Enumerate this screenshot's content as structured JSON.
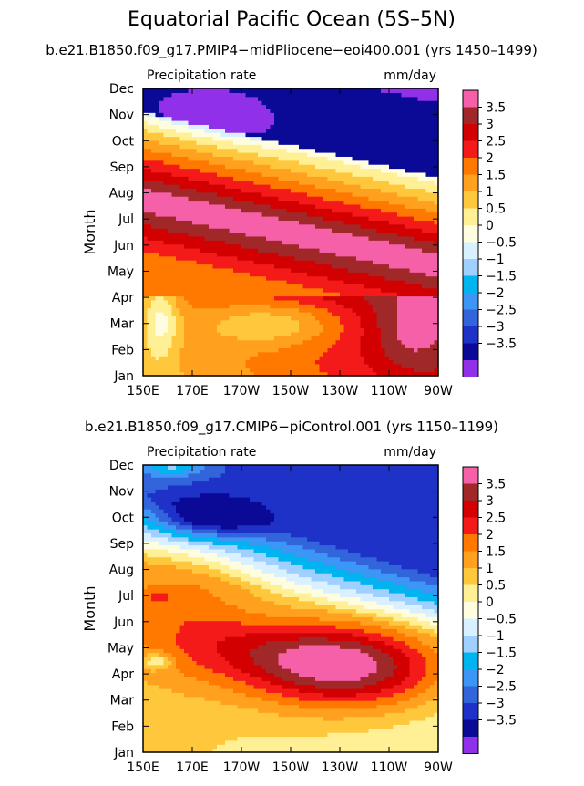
{
  "main_title": "Equatorial Pacific Ocean (5S–5N)",
  "panels": [
    {
      "title": "b.e21.B1850.f09_g17.PMIP4−midPliocene−eoi400.001 (yrs 1450–1499)",
      "left_label": "Precipitation rate",
      "right_label": "mm/day"
    },
    {
      "title": "b.e21.B1850.f09_g17.CMIP6−piControl.001 (yrs 1150–1199)",
      "left_label": "Precipitation rate",
      "right_label": "mm/day"
    }
  ],
  "chart_data": [
    {
      "type": "heatmap",
      "title": "b.e21.B1850.f09_g17.PMIP4−midPliocene−eoi400.001 (yrs 1450–1499)",
      "variable": "Precipitation rate",
      "units": "mm/day",
      "ylabel": "Month",
      "xlabel": "",
      "x_ticks": [
        "150E",
        "170E",
        "170W",
        "150W",
        "130W",
        "110W",
        "90W"
      ],
      "x_range": [
        150,
        270
      ],
      "y_ticks": [
        "Jan",
        "Feb",
        "Mar",
        "Apr",
        "May",
        "Jun",
        "Jul",
        "Aug",
        "Sep",
        "Oct",
        "Nov",
        "Dec"
      ],
      "colorbar_levels": [
        -3.5,
        -3,
        -2.5,
        -2,
        -1.5,
        -1,
        -0.5,
        0,
        0.5,
        1,
        1.5,
        2,
        2.5,
        3,
        3.5
      ],
      "colorbar_labels": [
        "3.5",
        "3",
        "2.5",
        "2",
        "1.5",
        "1",
        "0.5",
        "0",
        "−0.5",
        "−1",
        "−1.5",
        "−2",
        "−2.5",
        "−3",
        "−3.5"
      ]
    },
    {
      "type": "heatmap",
      "title": "b.e21.B1850.f09_g17.CMIP6−piControl.001 (yrs 1150–1199)",
      "variable": "Precipitation rate",
      "units": "mm/day",
      "ylabel": "Month",
      "xlabel": "",
      "x_ticks": [
        "150E",
        "170E",
        "170W",
        "150W",
        "130W",
        "110W",
        "90W"
      ],
      "x_range": [
        150,
        270
      ],
      "y_ticks": [
        "Jan",
        "Feb",
        "Mar",
        "Apr",
        "May",
        "Jun",
        "Jul",
        "Aug",
        "Sep",
        "Oct",
        "Nov",
        "Dec"
      ],
      "colorbar_levels": [
        -3.5,
        -3,
        -2.5,
        -2,
        -1.5,
        -1,
        -0.5,
        0,
        0.5,
        1,
        1.5,
        2,
        2.5,
        3,
        3.5
      ],
      "colorbar_labels": [
        "3.5",
        "3",
        "2.5",
        "2",
        "1.5",
        "1",
        "0.5",
        "0",
        "−0.5",
        "−1",
        "−1.5",
        "−2",
        "−2.5",
        "−3",
        "−3.5"
      ]
    }
  ],
  "colorbar_colors_top_to_bottom": [
    "#f560a8",
    "#a02828",
    "#d20000",
    "#f51a1a",
    "#ff7800",
    "#ffa01e",
    "#ffc83c",
    "#fff096",
    "#fffde0",
    "#d8f0ff",
    "#a0d0ff",
    "#00b4f0",
    "#3c96f5",
    "#3264dc",
    "#1e32c8",
    "#0a0a96",
    "#9030e8"
  ]
}
